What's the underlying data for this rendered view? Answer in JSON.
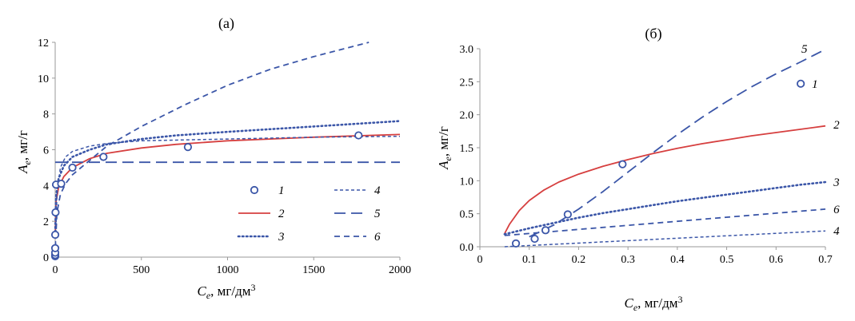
{
  "chart_data": [
    {
      "type": "scatter",
      "panel_label": "(а)",
      "xlabel": {
        "main": "C",
        "sub": "e",
        "rest": ", мг/дм",
        "sup": "3"
      },
      "ylabel": {
        "main": "A",
        "sub": "e",
        "rest": ", мг/г"
      },
      "xlim": [
        0,
        2000
      ],
      "ylim": [
        0,
        12
      ],
      "xticks": [
        0,
        500,
        1000,
        1500,
        2000
      ],
      "yticks": [
        0,
        2,
        4,
        6,
        8,
        10,
        12
      ],
      "legend": {
        "placement": "center-right",
        "labels": [
          "1",
          "2",
          "3",
          "4",
          "5",
          "6"
        ]
      },
      "points": {
        "name": "1",
        "x": [
          0.07,
          0.11,
          0.13,
          0.18,
          0.29,
          2,
          5,
          35,
          100,
          280,
          770,
          1760
        ],
        "y": [
          0.05,
          0.12,
          0.25,
          0.5,
          1.25,
          2.5,
          4.05,
          4.1,
          5.0,
          5.6,
          6.15,
          6.8
        ]
      },
      "series": [
        {
          "name": "2",
          "x": [
            0.3,
            5,
            20,
            50,
            100,
            200,
            300,
            500,
            700,
            1000,
            1500,
            2000
          ],
          "y": [
            1.3,
            3.1,
            3.9,
            4.5,
            5.0,
            5.5,
            5.8,
            6.1,
            6.3,
            6.5,
            6.7,
            6.85
          ]
        },
        {
          "name": "3",
          "x": [
            0.5,
            5,
            20,
            50,
            100,
            200,
            300,
            500,
            700,
            1000,
            1500,
            2000
          ],
          "y": [
            1.4,
            3.4,
            4.4,
            5.1,
            5.6,
            6.0,
            6.3,
            6.6,
            6.8,
            7.0,
            7.3,
            7.6
          ]
        },
        {
          "name": "4",
          "x": [
            1,
            10,
            30,
            60,
            100,
            200,
            300,
            500,
            1000,
            1500,
            2000
          ],
          "y": [
            0.4,
            3.5,
            5.0,
            5.6,
            5.9,
            6.2,
            6.35,
            6.5,
            6.6,
            6.7,
            6.75
          ]
        },
        {
          "name": "5",
          "x": [
            0,
            2000
          ],
          "y": [
            5.3,
            5.3
          ]
        },
        {
          "name": "6",
          "x": [
            1,
            10,
            30,
            60,
            100,
            200,
            300,
            500,
            750,
            1000,
            1250,
            1500,
            1820
          ],
          "y": [
            0.5,
            2.5,
            3.5,
            4.1,
            4.6,
            5.4,
            6.2,
            7.3,
            8.5,
            9.6,
            10.5,
            11.2,
            12.0
          ]
        }
      ]
    },
    {
      "type": "scatter",
      "panel_label": "(б)",
      "xlabel": {
        "main": "C",
        "sub": "e",
        "rest": ", мг/дм",
        "sup": "3"
      },
      "ylabel": {
        "main": "A",
        "sub": "e",
        "rest": ", мг/г"
      },
      "xlim": [
        0,
        0.7
      ],
      "ylim": [
        0,
        3.0
      ],
      "xticks": [
        0,
        0.1,
        0.2,
        0.3,
        0.4,
        0.5,
        0.6,
        0.7
      ],
      "xtick_labels": [
        "0",
        "0.1",
        "0.2",
        "0.3",
        "0.4",
        "0.5",
        "0.6",
        "0.7"
      ],
      "yticks": [
        0,
        0.5,
        1.0,
        1.5,
        2.0,
        2.5,
        3.0
      ],
      "ytick_labels": [
        "0.0",
        "0.5",
        "1.0",
        "1.5",
        "2.0",
        "2.5",
        "3.0"
      ],
      "points": {
        "name": "1",
        "x": [
          0.073,
          0.111,
          0.133,
          0.178,
          0.289
        ],
        "y": [
          0.05,
          0.12,
          0.25,
          0.49,
          1.25
        ]
      },
      "legend_point": {
        "x": 0.65,
        "y": 2.47,
        "label": "1"
      },
      "series": [
        {
          "name": "2",
          "x": [
            0.05,
            0.06,
            0.08,
            0.1,
            0.13,
            0.16,
            0.2,
            0.25,
            0.3,
            0.35,
            0.4,
            0.45,
            0.5,
            0.55,
            0.6,
            0.65,
            0.7
          ],
          "y": [
            0.2,
            0.34,
            0.55,
            0.7,
            0.86,
            0.98,
            1.1,
            1.22,
            1.32,
            1.41,
            1.49,
            1.56,
            1.62,
            1.68,
            1.73,
            1.78,
            1.83
          ],
          "end_label": {
            "x": 0.71,
            "y": 1.85,
            "text": "2"
          }
        },
        {
          "name": "3",
          "x": [
            0.05,
            0.1,
            0.15,
            0.2,
            0.25,
            0.3,
            0.35,
            0.4,
            0.45,
            0.5,
            0.55,
            0.6,
            0.65,
            0.7
          ],
          "y": [
            0.19,
            0.28,
            0.36,
            0.44,
            0.51,
            0.57,
            0.63,
            0.69,
            0.74,
            0.79,
            0.84,
            0.89,
            0.94,
            0.98
          ],
          "end_label": {
            "x": 0.71,
            "y": 0.98,
            "text": "3"
          }
        },
        {
          "name": "4",
          "x": [
            0.05,
            0.7
          ],
          "y": [
            0.0,
            0.24
          ],
          "end_label": {
            "x": 0.71,
            "y": 0.24,
            "text": "4"
          }
        },
        {
          "name": "5",
          "x": [
            0.1,
            0.15,
            0.2,
            0.25,
            0.3,
            0.35,
            0.4,
            0.45,
            0.5,
            0.55,
            0.6,
            0.65,
            0.7
          ],
          "y": [
            0.15,
            0.33,
            0.57,
            0.84,
            1.13,
            1.42,
            1.7,
            1.96,
            2.2,
            2.42,
            2.62,
            2.8,
            2.99
          ],
          "end_label": {
            "x": 0.645,
            "y": 3.0,
            "text": "5"
          }
        },
        {
          "name": "6",
          "x": [
            0.05,
            0.7
          ],
          "y": [
            0.17,
            0.57
          ],
          "end_label": {
            "x": 0.71,
            "y": 0.57,
            "text": "6"
          }
        }
      ]
    }
  ],
  "colors": {
    "blue": "#3b56a8",
    "red": "#d63f3f",
    "axis": "#9a9a9a"
  }
}
